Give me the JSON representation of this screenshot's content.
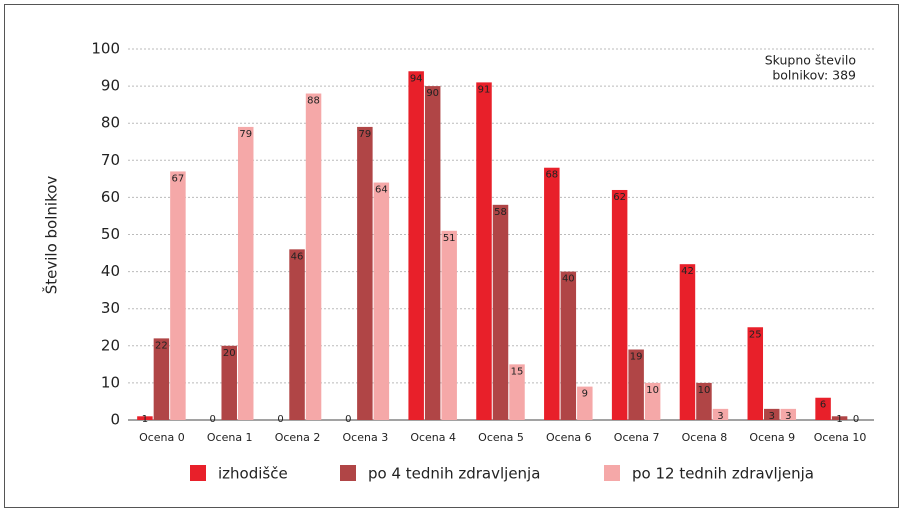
{
  "chart_data": {
    "type": "bar",
    "y_label": "Število bolnikov",
    "annotation": [
      "Skupno število",
      "bolnikov: 389"
    ],
    "categories": [
      "Ocena 0",
      "Ocena 1",
      "Ocena 2",
      "Ocena 3",
      "Ocena 4",
      "Ocena 5",
      "Ocena 6",
      "Ocena 7",
      "Ocena 8",
      "Ocena 9",
      "Ocena 10"
    ],
    "series": [
      {
        "name": "izhodišče",
        "color": "#e8202a",
        "values": [
          1,
          0,
          0,
          0,
          94,
          91,
          68,
          62,
          42,
          25,
          6
        ]
      },
      {
        "name": "po 4 tednih zdravljenja",
        "color": "#b04546",
        "values": [
          22,
          20,
          46,
          79,
          90,
          58,
          40,
          19,
          10,
          3,
          1
        ]
      },
      {
        "name": "po 12 tednih zdravljenja",
        "color": "#f5a8a8",
        "values": [
          67,
          79,
          88,
          64,
          51,
          15,
          9,
          10,
          3,
          3,
          0
        ]
      }
    ],
    "ylim": [
      0,
      100
    ],
    "yticks": [
      0,
      10,
      20,
      30,
      40,
      50,
      60,
      70,
      80,
      90,
      100
    ],
    "grid": true,
    "legend": "bottom"
  }
}
